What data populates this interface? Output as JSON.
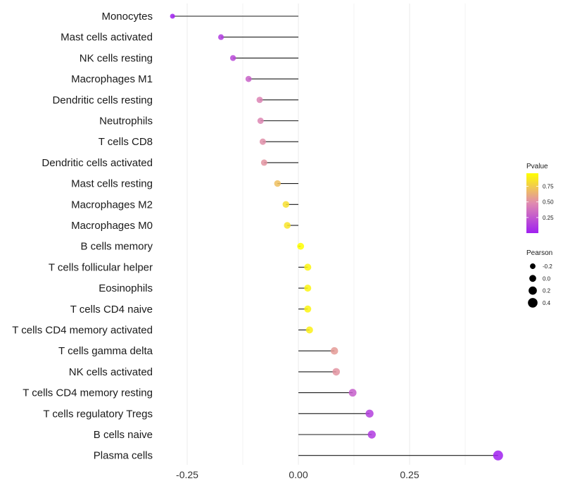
{
  "chart_data": {
    "type": "lollipop",
    "title": "",
    "xlabel": "",
    "ylabel": "",
    "xlim": [
      -0.3,
      0.47
    ],
    "x_ticks": [
      -0.25,
      0.0,
      0.25
    ],
    "x_tick_labels": [
      "-0.25",
      "0.00",
      "0.25"
    ],
    "grid": true,
    "legend_position": "right",
    "categories": [
      "Monocytes",
      "Mast cells activated",
      "NK cells resting",
      "Macrophages M1",
      "Dendritic cells resting",
      "Neutrophils",
      "T cells CD8",
      "Dendritic cells activated",
      "Mast cells resting",
      "Macrophages M2",
      "Macrophages M0",
      "B cells memory",
      "T cells follicular helper",
      "Eosinophils",
      "T cells CD4 naive",
      "T cells CD4 memory activated",
      "T cells gamma delta",
      "NK cells activated",
      "T cells CD4 memory resting",
      "T cells regulatory  Tregs ",
      "B cells naive",
      "Plasma cells"
    ],
    "series": [
      {
        "name": "Pearson",
        "values": [
          -0.283,
          -0.174,
          -0.147,
          -0.112,
          -0.087,
          -0.085,
          -0.08,
          -0.077,
          -0.047,
          -0.028,
          -0.025,
          0.005,
          0.021,
          0.021,
          0.021,
          0.025,
          0.081,
          0.085,
          0.122,
          0.16,
          0.165,
          0.449
        ]
      },
      {
        "name": "Pvalue",
        "values": [
          0.0,
          0.12,
          0.18,
          0.3,
          0.45,
          0.46,
          0.5,
          0.52,
          0.7,
          0.83,
          0.85,
          0.98,
          0.92,
          0.92,
          0.92,
          0.9,
          0.55,
          0.52,
          0.28,
          0.14,
          0.12,
          0.003
        ]
      }
    ],
    "color_legend": {
      "title": "Pvalue",
      "tick_labels": [
        "0.75",
        "0.50",
        "0.25"
      ],
      "ticks": [
        0.75,
        0.5,
        0.25
      ],
      "range": [
        0.0,
        0.96
      ],
      "low_color": "#A020F0",
      "high_color": "#FFFF00"
    },
    "size_legend": {
      "title": "Pearson",
      "values": [
        -0.2,
        0.0,
        0.2,
        0.4
      ],
      "labels": [
        "-0.2",
        "0.0",
        "0.2",
        "0.4"
      ]
    },
    "colors": {
      "segment": "#1a1a1a",
      "grid": "#ebebeb",
      "legend_dot": "#000000"
    }
  }
}
